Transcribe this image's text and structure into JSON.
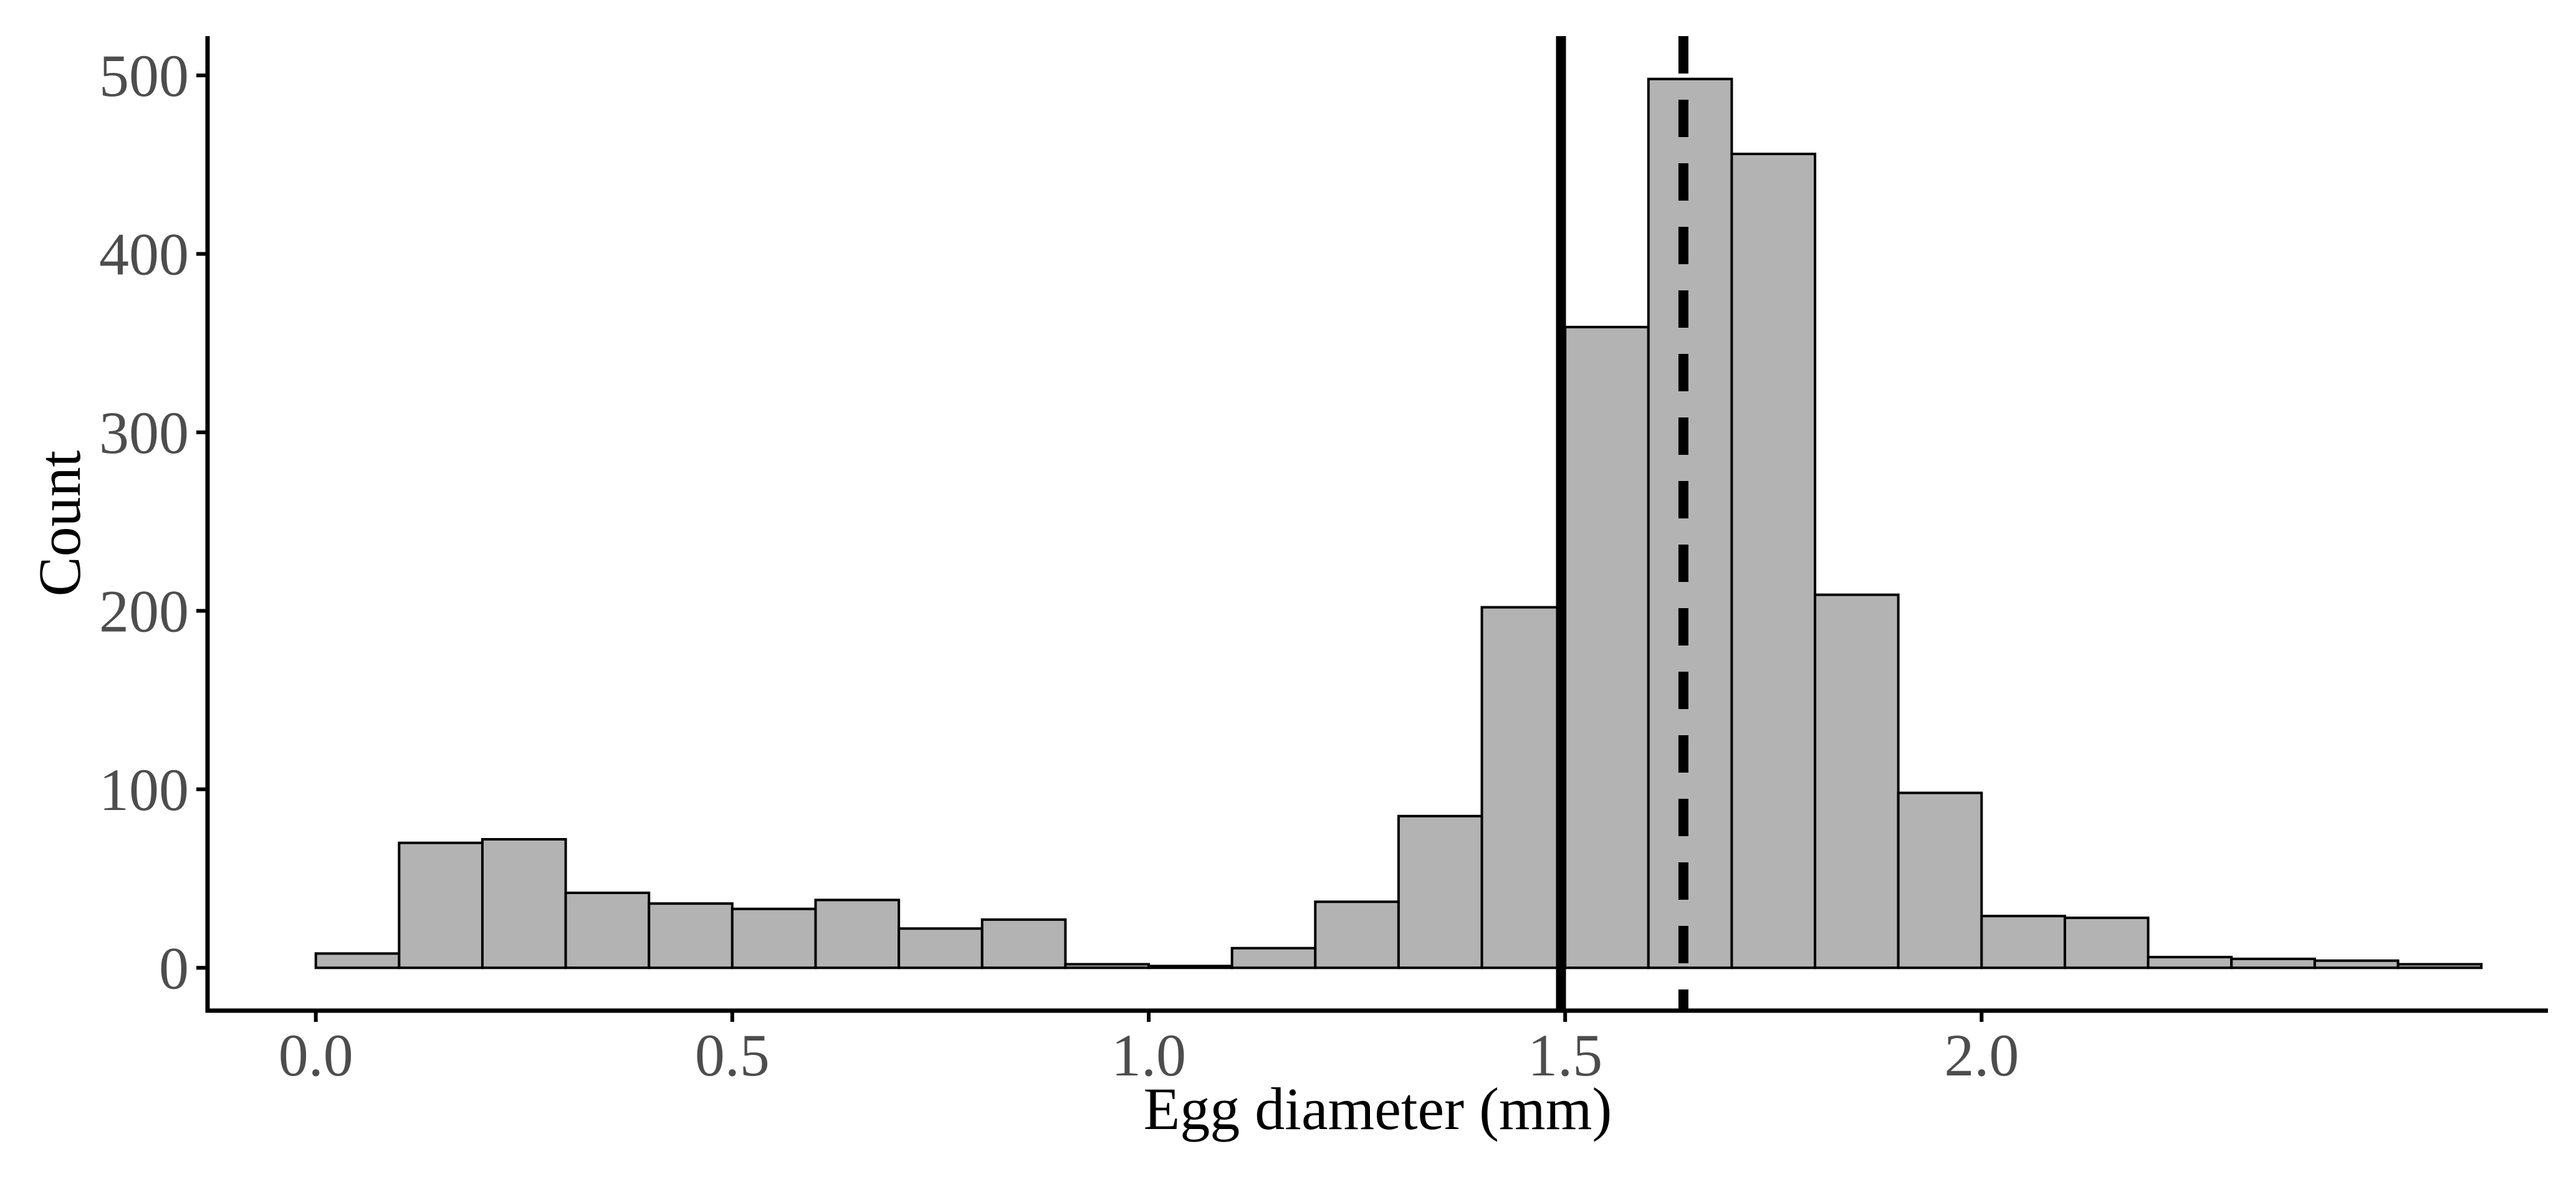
{
  "chart_data": {
    "type": "bar",
    "subtype": "histogram",
    "xlabel": "Egg diameter (mm)",
    "ylabel": "Count",
    "bin_width": 0.1,
    "bins": [
      {
        "start": 0.0,
        "end": 0.1,
        "count": 8
      },
      {
        "start": 0.1,
        "end": 0.2,
        "count": 70
      },
      {
        "start": 0.2,
        "end": 0.3,
        "count": 72
      },
      {
        "start": 0.3,
        "end": 0.4,
        "count": 42
      },
      {
        "start": 0.4,
        "end": 0.5,
        "count": 36
      },
      {
        "start": 0.5,
        "end": 0.6,
        "count": 33
      },
      {
        "start": 0.6,
        "end": 0.7,
        "count": 38
      },
      {
        "start": 0.7,
        "end": 0.8,
        "count": 22
      },
      {
        "start": 0.8,
        "end": 0.9,
        "count": 27
      },
      {
        "start": 0.9,
        "end": 1.0,
        "count": 2
      },
      {
        "start": 1.0,
        "end": 1.1,
        "count": 1
      },
      {
        "start": 1.1,
        "end": 1.2,
        "count": 11
      },
      {
        "start": 1.2,
        "end": 1.3,
        "count": 37
      },
      {
        "start": 1.3,
        "end": 1.4,
        "count": 85
      },
      {
        "start": 1.4,
        "end": 1.5,
        "count": 202
      },
      {
        "start": 1.5,
        "end": 1.6,
        "count": 359
      },
      {
        "start": 1.6,
        "end": 1.7,
        "count": 498
      },
      {
        "start": 1.7,
        "end": 1.8,
        "count": 456
      },
      {
        "start": 1.8,
        "end": 1.9,
        "count": 209
      },
      {
        "start": 1.9,
        "end": 2.0,
        "count": 98
      },
      {
        "start": 2.0,
        "end": 2.1,
        "count": 29
      },
      {
        "start": 2.1,
        "end": 2.2,
        "count": 28
      },
      {
        "start": 2.2,
        "end": 2.3,
        "count": 6
      },
      {
        "start": 2.3,
        "end": 2.4,
        "count": 5
      },
      {
        "start": 2.4,
        "end": 2.5,
        "count": 4
      },
      {
        "start": 2.5,
        "end": 2.6,
        "count": 2
      }
    ],
    "reference_lines": [
      {
        "x": 1.495,
        "style": "solid"
      },
      {
        "x": 1.642,
        "style": "dashed"
      }
    ],
    "xlim": [
      -0.13,
      2.68
    ],
    "ylim": [
      -24,
      522
    ],
    "x_ticks": [
      0.0,
      0.5,
      1.0,
      1.5,
      2.0
    ],
    "x_tick_labels": [
      "0.0",
      "0.5",
      "1.0",
      "1.5",
      "2.0"
    ],
    "y_ticks": [
      0,
      100,
      200,
      300,
      400,
      500
    ],
    "y_tick_labels": [
      "0",
      "100",
      "200",
      "300",
      "400",
      "500"
    ],
    "grid": false,
    "legend": "none",
    "colors": {
      "bar_fill": "#b3b3b3",
      "bar_edge": "#000000",
      "reference_line": "#000000",
      "tick_label": "#4d4d4d",
      "axis_title": "#000000"
    }
  }
}
